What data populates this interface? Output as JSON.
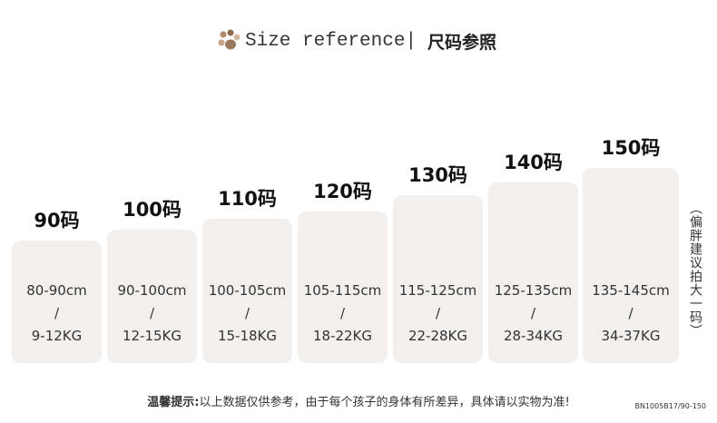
{
  "header": {
    "title": "Size reference",
    "separator": "|",
    "title_cn": "尺码参照"
  },
  "sizes": [
    {
      "label": "90码",
      "height": "80-90cm",
      "slash": "/",
      "weight": "9-12KG"
    },
    {
      "label": "100码",
      "height": "90-100cm",
      "slash": "/",
      "weight": "12-15KG"
    },
    {
      "label": "110码",
      "height": "100-105cm",
      "slash": "/",
      "weight": "15-18KG"
    },
    {
      "label": "120码",
      "height": "105-115cm",
      "slash": "/",
      "weight": "18-22KG"
    },
    {
      "label": "130码",
      "height": "115-125cm",
      "slash": "/",
      "weight": "22-28KG"
    },
    {
      "label": "140码",
      "height": "125-135cm",
      "slash": "/",
      "weight": "28-34KG"
    },
    {
      "label": "150码",
      "height": "135-145cm",
      "slash": "/",
      "weight": "34-37KG"
    }
  ],
  "side_note": "（偏胖建议拍大一码）",
  "footer": {
    "prefix": "温馨提示:",
    "text": "以上数据仅供参考，由于每个孩子的身体有所差异，具体请以实物为准!"
  },
  "code": "BN1005B17/90-150"
}
